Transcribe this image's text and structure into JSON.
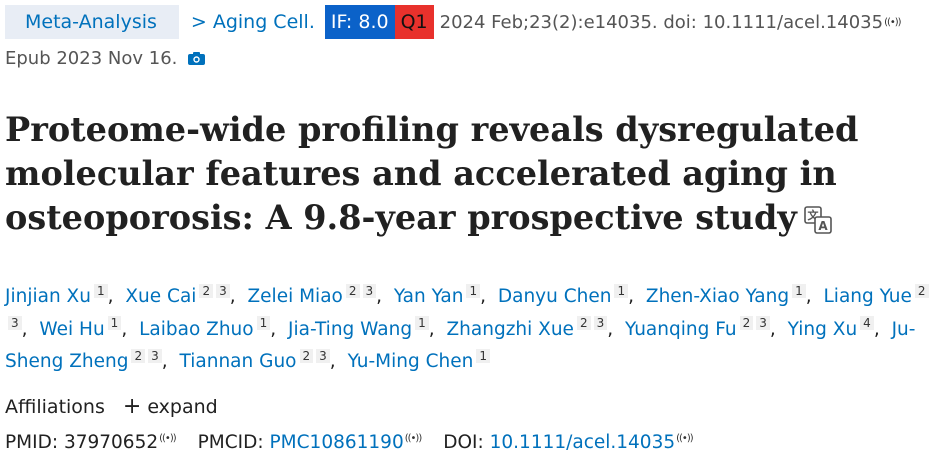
{
  "header": {
    "publication_type": "Meta-Analysis",
    "separator": ">",
    "journal": "Aging Cell.",
    "if_badge": "IF: 8.0",
    "quartile_badge": "Q1",
    "citation": "2024 Feb;23(2):e14035. doi: 10.1111/acel.14035",
    "epub": "Epub 2023 Nov 16.",
    "radio_icon": "((•))"
  },
  "title": "Proteome-wide profiling reveals dysregulated molecular features and accelerated aging in osteoporosis: A 9.8-year prospective study",
  "authors": [
    {
      "name": "Jinjian Xu",
      "aff": [
        "1"
      ]
    },
    {
      "name": "Xue Cai",
      "aff": [
        "2",
        "3"
      ]
    },
    {
      "name": "Zelei Miao",
      "aff": [
        "2",
        "3"
      ]
    },
    {
      "name": "Yan Yan",
      "aff": [
        "1"
      ]
    },
    {
      "name": "Danyu Chen",
      "aff": [
        "1"
      ]
    },
    {
      "name": "Zhen-Xiao Yang",
      "aff": [
        "1"
      ]
    },
    {
      "name": "Liang Yue",
      "aff": [
        "2",
        "3"
      ]
    },
    {
      "name": "Wei Hu",
      "aff": [
        "1"
      ]
    },
    {
      "name": "Laibao Zhuo",
      "aff": [
        "1"
      ]
    },
    {
      "name": "Jia-Ting Wang",
      "aff": [
        "1"
      ]
    },
    {
      "name": "Zhangzhi Xue",
      "aff": [
        "2",
        "3"
      ]
    },
    {
      "name": "Yuanqing Fu",
      "aff": [
        "2",
        "3"
      ]
    },
    {
      "name": "Ying Xu",
      "aff": [
        "4"
      ]
    },
    {
      "name": "Ju-Sheng Zheng",
      "aff": [
        "2",
        "3"
      ]
    },
    {
      "name": "Tiannan Guo",
      "aff": [
        "2",
        "3"
      ]
    },
    {
      "name": "Yu-Ming Chen",
      "aff": [
        "1"
      ]
    }
  ],
  "affiliations": {
    "label": "Affiliations",
    "expand_icon": "+",
    "expand_label": "expand"
  },
  "ids": {
    "pmid_label": "PMID:",
    "pmid": "37970652",
    "pmcid_label": "PMCID:",
    "pmcid": "PMC10861190",
    "doi_label": "DOI:",
    "doi": "10.1111/acel.14035"
  },
  "colors": {
    "link": "#0071bc",
    "if_badge": "#0b62c9",
    "quartile_badge": "#e8312c",
    "pubtype_bg": "#e8edf5"
  },
  "icons": {
    "camera": "camera-icon",
    "translate": "translate-icon",
    "radio": "radio-wave-icon"
  }
}
